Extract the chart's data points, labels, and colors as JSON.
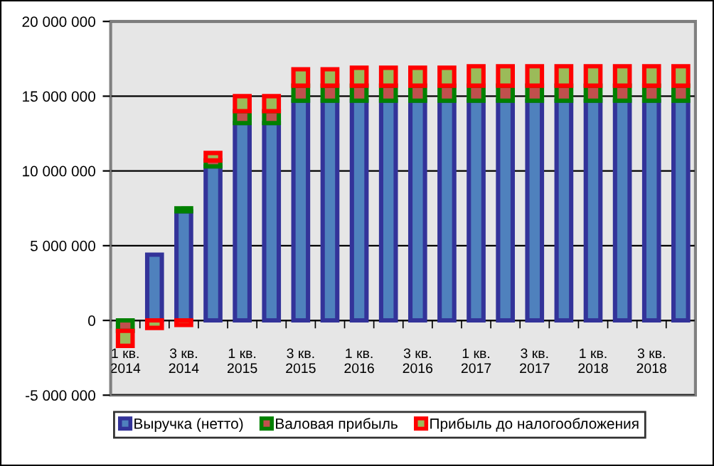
{
  "chart_data": {
    "type": "bar",
    "stacked": true,
    "categories": [
      "1 кв.\n2014",
      null,
      "3 кв.\n2014",
      null,
      "1 кв.\n2015",
      null,
      "3 кв.\n2015",
      null,
      "1 кв.\n2016",
      null,
      "3 кв.\n2016",
      null,
      "1 кв.\n2017",
      null,
      "3 кв.\n2017",
      null,
      "1 кв.\n2018",
      null,
      "3 кв.\n2018",
      null
    ],
    "series": [
      {
        "name": "Выручка (нетто)",
        "color": "#333399",
        "values": [
          0,
          4400000,
          7300000,
          10300000,
          13200000,
          13200000,
          14700000,
          14700000,
          14700000,
          14700000,
          14700000,
          14700000,
          14700000,
          14700000,
          14700000,
          14700000,
          14700000,
          14700000,
          14700000,
          14700000
        ]
      },
      {
        "name": "Валовая прибыль",
        "color": "#008000",
        "values": [
          -700000,
          null,
          200000,
          400000,
          800000,
          800000,
          1000000,
          1000000,
          1000000,
          1000000,
          1000000,
          1000000,
          1000000,
          1000000,
          1000000,
          1000000,
          1000000,
          1000000,
          1000000,
          1000000
        ]
      },
      {
        "name": "Прибыль до налогообложения",
        "color": "#ff0000",
        "values": [
          -1000000,
          -500000,
          -300000,
          500000,
          1000000,
          1000000,
          1100000,
          1100000,
          1200000,
          1200000,
          1200000,
          1200000,
          1300000,
          1300000,
          1300000,
          1300000,
          1300000,
          1300000,
          1300000,
          1300000
        ]
      }
    ],
    "ylim": [
      -5000000,
      20000000
    ],
    "yticks": [
      {
        "value": -5000000,
        "label": "-5 000 000"
      },
      {
        "value": 0,
        "label": "0"
      },
      {
        "value": 5000000,
        "label": "5 000 000"
      },
      {
        "value": 10000000,
        "label": "10 000 000"
      },
      {
        "value": 15000000,
        "label": "15 000 000"
      },
      {
        "value": 20000000,
        "label": "20 000 000"
      }
    ],
    "grid": "y",
    "legend": "bottom"
  }
}
